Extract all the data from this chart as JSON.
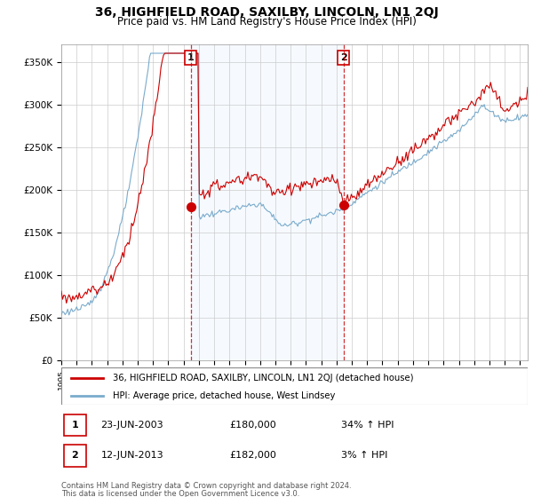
{
  "title": "36, HIGHFIELD ROAD, SAXILBY, LINCOLN, LN1 2QJ",
  "subtitle": "Price paid vs. HM Land Registry's House Price Index (HPI)",
  "title_fontsize": 10,
  "subtitle_fontsize": 8.5,
  "ylabel_ticks": [
    "£0",
    "£50K",
    "£100K",
    "£150K",
    "£200K",
    "£250K",
    "£300K",
    "£350K"
  ],
  "ytick_values": [
    0,
    50000,
    100000,
    150000,
    200000,
    250000,
    300000,
    350000
  ],
  "ylim": [
    0,
    370000
  ],
  "xlim_start": 1995.0,
  "xlim_end": 2025.5,
  "grid_color": "#cccccc",
  "background_color": "#ffffff",
  "sale1": {
    "date_year": 2003.47,
    "price": 180000,
    "label": "1",
    "date_str": "23-JUN-2003",
    "price_str": "£180,000",
    "hpi_str": "34% ↑ HPI"
  },
  "sale2": {
    "date_year": 2013.45,
    "price": 182000,
    "label": "2",
    "date_str": "12-JUN-2013",
    "price_str": "£182,000",
    "hpi_str": "3% ↑ HPI"
  },
  "legend_line1": "36, HIGHFIELD ROAD, SAXILBY, LINCOLN, LN1 2QJ (detached house)",
  "legend_line2": "HPI: Average price, detached house, West Lindsey",
  "footer1": "Contains HM Land Registry data © Crown copyright and database right 2024.",
  "footer2": "This data is licensed under the Open Government Licence v3.0.",
  "line_color_red": "#cc0000",
  "line_color_blue": "#7aabcc",
  "fill_color_blue": "#ddeeff",
  "dashed_line_color": "#cc0000"
}
